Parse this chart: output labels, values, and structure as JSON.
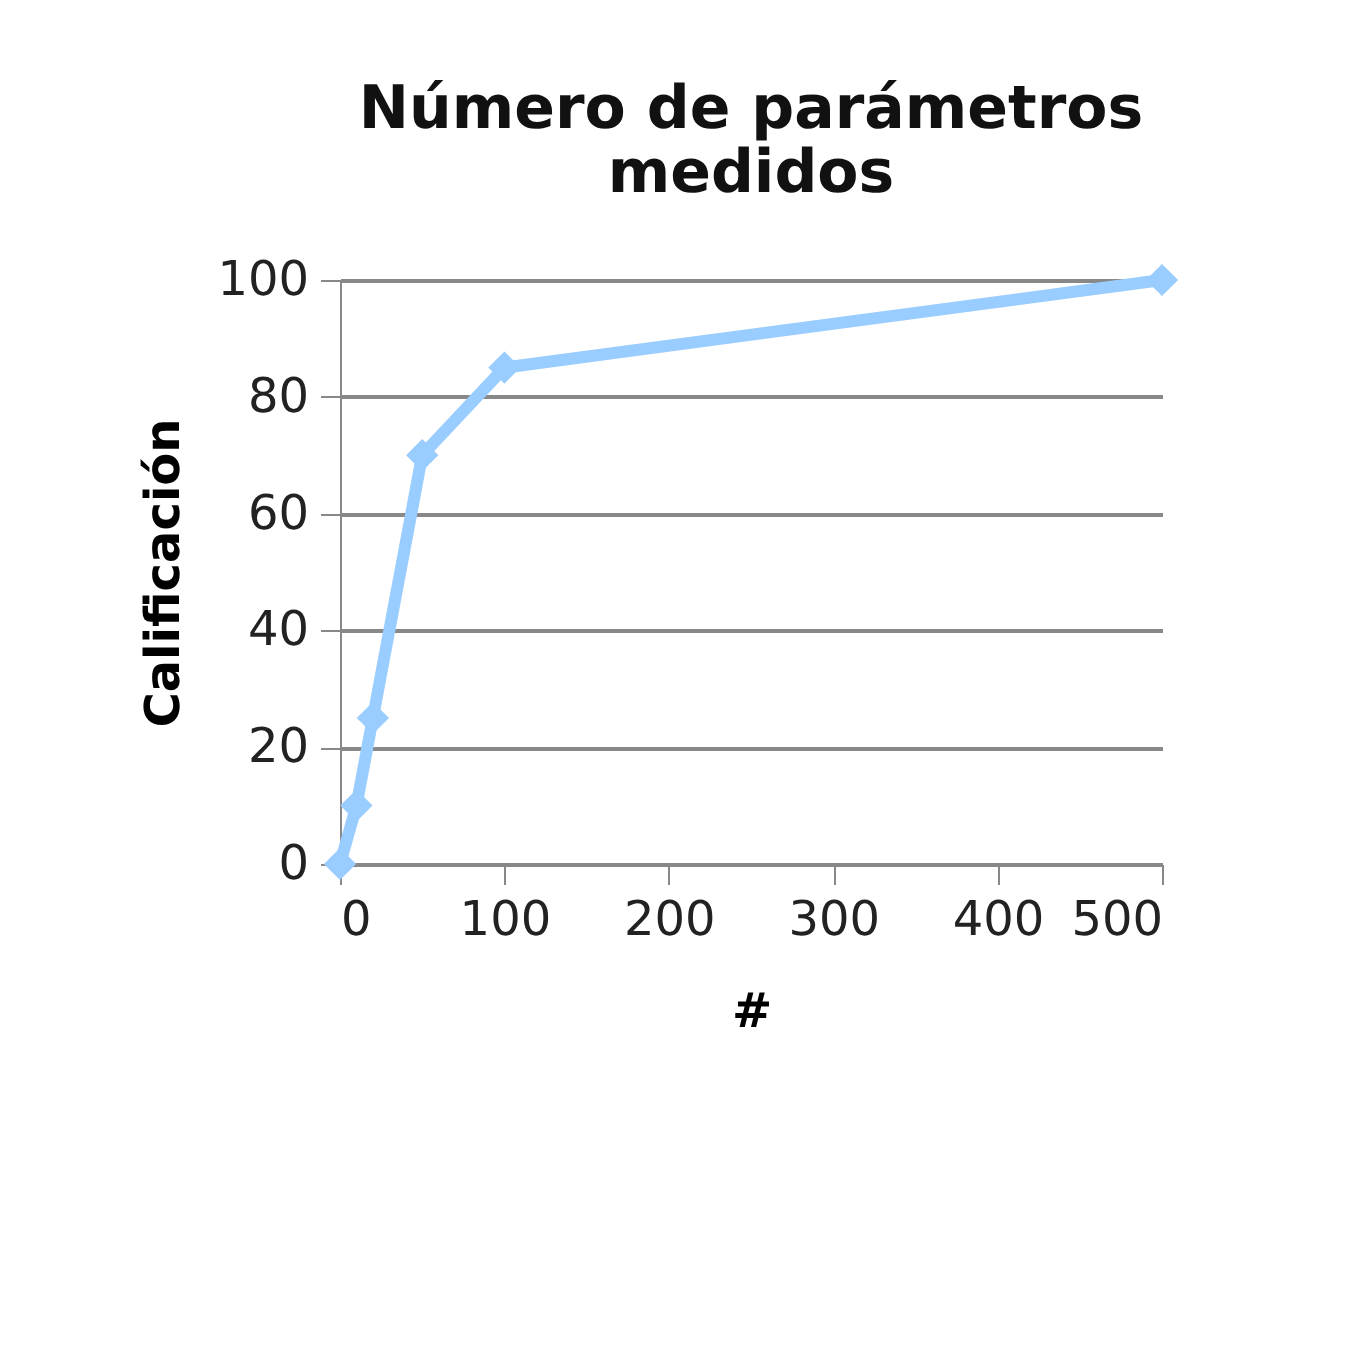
{
  "chart_data": {
    "type": "line",
    "title": [
      "Número de parámetros",
      "medidos"
    ],
    "xlabel": "#",
    "ylabel": "Calificación",
    "x": [
      0,
      10,
      20,
      50,
      100,
      500
    ],
    "series": [
      {
        "color": "#99ccff",
        "values": [
          0,
          10,
          25,
          70,
          85,
          100
        ]
      }
    ],
    "xlim": [
      0,
      500
    ],
    "xticks": [
      0,
      100,
      200,
      300,
      400,
      500
    ],
    "ylim": [
      0,
      100
    ],
    "yticks": [
      0,
      20,
      40,
      60,
      80,
      100
    ],
    "grid": "y",
    "marker": "diamond",
    "line_style": "solid",
    "legend": false
  }
}
